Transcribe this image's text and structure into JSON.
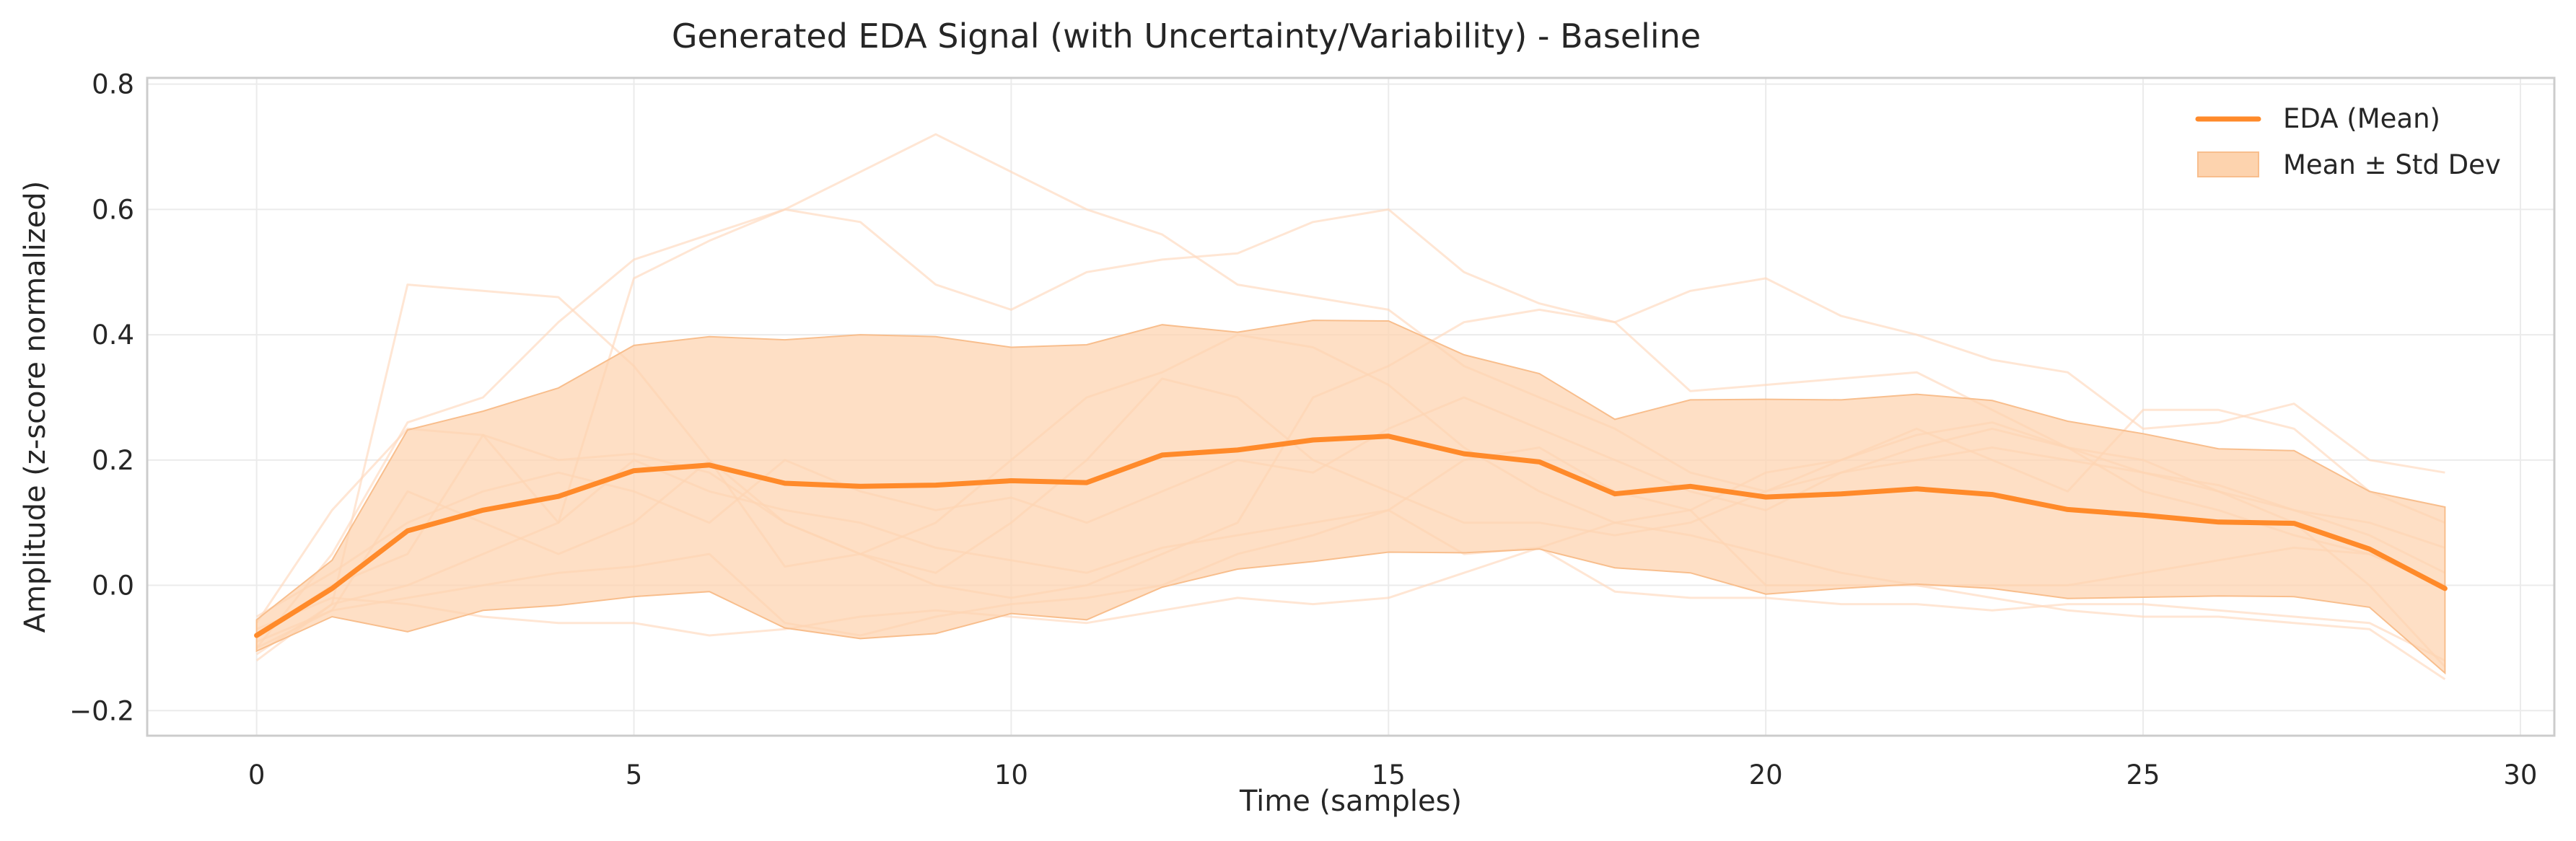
{
  "chart_data": {
    "type": "line",
    "title": "Generated EDA Signal (with Uncertainty/Variability) - Baseline",
    "xlabel": "Time (samples)",
    "ylabel": "Amplitude (z-score normalized)",
    "xlim": [
      -1.45,
      30.45
    ],
    "ylim": [
      -0.24,
      0.81
    ],
    "xticks": [
      0,
      5,
      10,
      15,
      20,
      25,
      30
    ],
    "yticks": [
      -0.2,
      0.0,
      0.2,
      0.4,
      0.6,
      0.8
    ],
    "xtick_labels": [
      "0",
      "5",
      "10",
      "15",
      "20",
      "25",
      "30"
    ],
    "ytick_labels": [
      "−0.2",
      "0.0",
      "0.2",
      "0.4",
      "0.6",
      "0.8"
    ],
    "grid": true,
    "legend_position": "top-right",
    "colors": {
      "mean": "#ff8a2a",
      "band": "#fdd3ae",
      "samples": "#ffd9bd"
    },
    "x": [
      0,
      1,
      2,
      3,
      4,
      5,
      6,
      7,
      8,
      9,
      10,
      11,
      12,
      13,
      14,
      15,
      16,
      17,
      18,
      19,
      20,
      21,
      22,
      23,
      24,
      25,
      26,
      27,
      28,
      29
    ],
    "series": [
      {
        "name": "EDA (Mean)",
        "values": [
          -0.08,
          -0.005,
          0.087,
          0.12,
          0.142,
          0.183,
          0.192,
          0.163,
          0.158,
          0.16,
          0.167,
          0.164,
          0.208,
          0.216,
          0.232,
          0.238,
          0.21,
          0.197,
          0.146,
          0.158,
          0.141,
          0.146,
          0.154,
          0.145,
          0.121,
          0.112,
          0.101,
          0.099,
          0.058,
          -0.005
        ]
      }
    ],
    "band": {
      "name": "Mean ± Std Dev",
      "upper": [
        -0.055,
        0.04,
        0.248,
        0.278,
        0.315,
        0.383,
        0.397,
        0.392,
        0.4,
        0.397,
        0.38,
        0.384,
        0.416,
        0.404,
        0.423,
        0.422,
        0.368,
        0.338,
        0.265,
        0.296,
        0.297,
        0.296,
        0.305,
        0.295,
        0.262,
        0.242,
        0.218,
        0.215,
        0.15,
        0.125
      ],
      "lower": [
        -0.105,
        -0.05,
        -0.074,
        -0.04,
        -0.032,
        -0.018,
        -0.01,
        -0.068,
        -0.085,
        -0.077,
        -0.045,
        -0.055,
        -0.003,
        0.026,
        0.038,
        0.053,
        0.052,
        0.058,
        0.028,
        0.02,
        -0.014,
        -0.005,
        0.002,
        -0.005,
        -0.021,
        -0.019,
        -0.017,
        -0.018,
        -0.035,
        -0.14
      ]
    },
    "samples": [
      [
        -0.12,
        -0.03,
        0.48,
        0.47,
        0.46,
        0.35,
        0.2,
        0.1,
        0.05,
        0.02,
        0.1,
        0.2,
        0.33,
        0.3,
        0.2,
        0.15,
        0.1,
        0.1,
        0.08,
        0.1,
        0.15,
        0.2,
        0.25,
        0.2,
        0.15,
        0.28,
        0.28,
        0.25,
        0.15,
        0.1
      ],
      [
        -0.1,
        0.05,
        0.26,
        0.3,
        0.42,
        0.52,
        0.56,
        0.6,
        0.66,
        0.72,
        0.66,
        0.6,
        0.56,
        0.48,
        0.46,
        0.44,
        0.35,
        0.3,
        0.25,
        0.18,
        0.15,
        0.18,
        0.22,
        0.25,
        0.22,
        0.15,
        0.12,
        0.08,
        0.05,
        0.0
      ],
      [
        -0.06,
        0.12,
        0.25,
        0.24,
        0.1,
        0.49,
        0.55,
        0.6,
        0.58,
        0.48,
        0.44,
        0.5,
        0.52,
        0.53,
        0.58,
        0.6,
        0.5,
        0.45,
        0.42,
        0.47,
        0.49,
        0.43,
        0.4,
        0.36,
        0.34,
        0.25,
        0.26,
        0.29,
        0.2,
        0.18
      ],
      [
        -0.08,
        0.0,
        0.05,
        0.24,
        0.2,
        0.21,
        0.18,
        0.1,
        0.05,
        0.0,
        -0.02,
        0.0,
        0.05,
        0.1,
        0.3,
        0.35,
        0.42,
        0.44,
        0.42,
        0.31,
        0.32,
        0.33,
        0.34,
        0.28,
        0.22,
        0.18,
        0.15,
        0.1,
        0.0,
        -0.13
      ],
      [
        -0.09,
        -0.04,
        0.15,
        0.1,
        0.05,
        0.1,
        0.2,
        0.03,
        0.05,
        0.1,
        0.2,
        0.3,
        0.34,
        0.4,
        0.38,
        0.32,
        0.22,
        0.15,
        0.1,
        0.08,
        0.05,
        0.02,
        0.0,
        -0.02,
        -0.04,
        -0.05,
        -0.05,
        -0.06,
        -0.07,
        -0.15
      ],
      [
        -0.07,
        -0.02,
        -0.03,
        -0.05,
        -0.06,
        -0.06,
        -0.08,
        -0.07,
        -0.05,
        -0.04,
        -0.05,
        -0.06,
        -0.04,
        -0.02,
        -0.03,
        -0.02,
        0.02,
        0.06,
        0.1,
        0.12,
        0.18,
        0.2,
        0.24,
        0.26,
        0.22,
        0.2,
        0.15,
        0.12,
        0.1,
        0.06
      ],
      [
        -0.1,
        -0.04,
        -0.02,
        0.0,
        0.02,
        0.03,
        0.05,
        -0.06,
        -0.08,
        -0.05,
        -0.03,
        -0.02,
        0.0,
        0.05,
        0.08,
        0.12,
        0.05,
        0.06,
        -0.01,
        -0.02,
        -0.02,
        -0.03,
        -0.03,
        -0.04,
        -0.03,
        -0.03,
        -0.04,
        -0.05,
        -0.06,
        -0.12
      ],
      [
        -0.11,
        -0.03,
        0.0,
        0.05,
        0.1,
        0.2,
        0.15,
        0.12,
        0.1,
        0.06,
        0.04,
        0.02,
        0.06,
        0.08,
        0.1,
        0.12,
        0.2,
        0.22,
        0.15,
        0.12,
        0.0,
        0.0,
        0.0,
        0.0,
        0.0,
        0.02,
        0.04,
        0.06,
        0.05,
        0.0
      ],
      [
        -0.05,
        0.02,
        0.1,
        0.15,
        0.18,
        0.15,
        0.1,
        0.2,
        0.15,
        0.12,
        0.14,
        0.1,
        0.15,
        0.2,
        0.18,
        0.25,
        0.3,
        0.25,
        0.2,
        0.15,
        0.12,
        0.18,
        0.2,
        0.22,
        0.2,
        0.18,
        0.16,
        0.12,
        0.08,
        0.02
      ]
    ]
  }
}
